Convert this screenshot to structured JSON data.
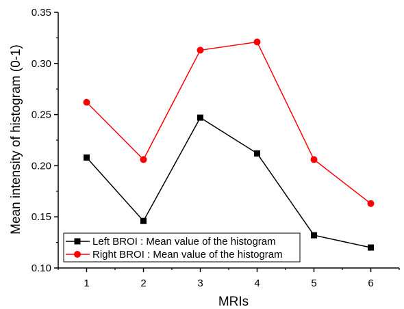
{
  "chart_data": {
    "type": "line",
    "title": "",
    "xlabel": "MRIs",
    "ylabel": "Mean intensity of histogram (0-1)",
    "x": [
      1,
      2,
      3,
      4,
      5,
      6
    ],
    "x_tick_labels": [
      "1",
      "2",
      "3",
      "4",
      "5",
      "6"
    ],
    "xlim": [
      0.5,
      6.5
    ],
    "ylim": [
      0.1,
      0.35
    ],
    "y_ticks": [
      0.1,
      0.15,
      0.2,
      0.25,
      0.3,
      0.35
    ],
    "y_tick_labels": [
      "0.10",
      "0.15",
      "0.20",
      "0.25",
      "0.30",
      "0.35"
    ],
    "grid": false,
    "legend_position": "bottom-left",
    "series": [
      {
        "name": "Left BROI : Mean value of the histogram",
        "values": [
          0.208,
          0.146,
          0.247,
          0.212,
          0.132,
          0.12
        ],
        "color": "#000000",
        "marker": "square"
      },
      {
        "name": "Right BROI : Mean value of the histogram",
        "values": [
          0.262,
          0.206,
          0.313,
          0.321,
          0.206,
          0.163
        ],
        "color": "#ff0000",
        "marker": "circle"
      }
    ]
  }
}
